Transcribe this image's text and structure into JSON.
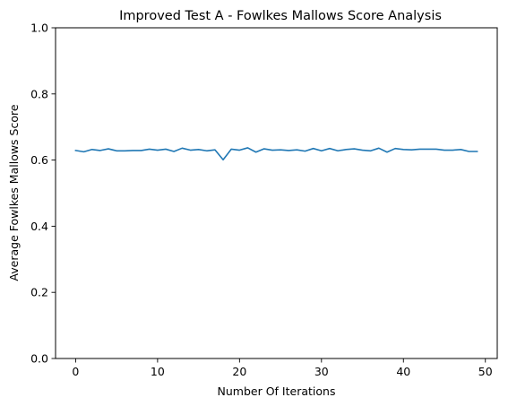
{
  "chart_data": {
    "type": "line",
    "title": "Improved Test A - Fowlkes Mallows Score Analysis",
    "xlabel": "Number Of Iterations",
    "ylabel": "Average Fowlkes Mallows Score",
    "xlim": [
      -2.45,
      51.45
    ],
    "ylim": [
      0.0,
      1.0
    ],
    "xticks": [
      0,
      10,
      20,
      30,
      40,
      50
    ],
    "yticks": [
      0.0,
      0.2,
      0.4,
      0.6,
      0.8,
      1.0
    ],
    "xtick_labels": [
      "0",
      "10",
      "20",
      "30",
      "40",
      "50"
    ],
    "ytick_labels": [
      "0.0",
      "0.2",
      "0.4",
      "0.6",
      "0.8",
      "1.0"
    ],
    "grid": false,
    "series": [
      {
        "color": "#1f77b4",
        "x": [
          0,
          1,
          2,
          3,
          4,
          5,
          6,
          7,
          8,
          9,
          10,
          11,
          12,
          13,
          14,
          15,
          16,
          17,
          18,
          19,
          20,
          21,
          22,
          23,
          24,
          25,
          26,
          27,
          28,
          29,
          30,
          31,
          32,
          33,
          34,
          35,
          36,
          37,
          38,
          39,
          40,
          41,
          42,
          43,
          44,
          45,
          46,
          47,
          48,
          49
        ],
        "values": [
          0.629,
          0.625,
          0.632,
          0.629,
          0.634,
          0.628,
          0.628,
          0.629,
          0.629,
          0.633,
          0.63,
          0.633,
          0.626,
          0.636,
          0.63,
          0.632,
          0.628,
          0.631,
          0.601,
          0.633,
          0.63,
          0.637,
          0.624,
          0.634,
          0.63,
          0.631,
          0.629,
          0.631,
          0.627,
          0.635,
          0.628,
          0.635,
          0.628,
          0.632,
          0.634,
          0.63,
          0.628,
          0.636,
          0.624,
          0.635,
          0.632,
          0.631,
          0.633,
          0.633,
          0.633,
          0.63,
          0.63,
          0.632,
          0.626,
          0.626
        ]
      }
    ]
  }
}
